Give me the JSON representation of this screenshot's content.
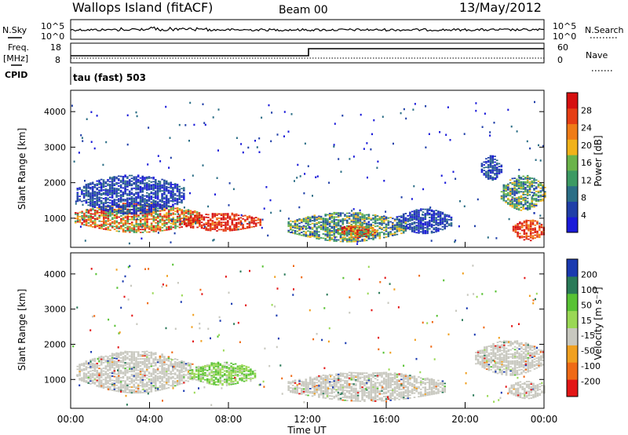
{
  "header": {
    "station": "Wallops Island (fitACF)",
    "beam": "Beam 00",
    "date": "13/May/2012"
  },
  "sky_panel": {
    "left_label": "N.Sky",
    "right_label": "N.Search",
    "left_ticks": [
      "10^5",
      "10^0"
    ],
    "right_ticks": [
      "10^5",
      "10^0"
    ]
  },
  "freq_panel": {
    "left_label_1": "Freq.",
    "left_label_2": "[MHz]",
    "right_label": "Nave",
    "left_ticks": [
      "18",
      "8"
    ],
    "right_ticks": [
      "60",
      "0"
    ]
  },
  "cpid_panel": {
    "label": "CPID",
    "mode": "tau (fast) 503"
  },
  "power_panel": {
    "ylabel": "Slant Range [km]",
    "yticks": [
      "4000",
      "3000",
      "2000",
      "1000"
    ],
    "colorbar_label": "Power [dB]",
    "colorbar_ticks": [
      "28",
      "24",
      "20",
      "16",
      "12",
      "8",
      "4"
    ]
  },
  "velocity_panel": {
    "ylabel": "Slant Range [km]",
    "yticks": [
      "4000",
      "3000",
      "2000",
      "1000"
    ],
    "colorbar_label": "Velocity [m s⁻¹]",
    "colorbar_ticks": [
      "200",
      "100",
      "50",
      "15",
      "-15",
      "-50",
      "-100",
      "-200"
    ]
  },
  "xaxis": {
    "label": "Time UT",
    "ticks": [
      "00:00",
      "04:00",
      "08:00",
      "12:00",
      "16:00",
      "20:00",
      "00:00"
    ]
  },
  "chart_data": {
    "type": "heatmap",
    "xlabel": "Time UT",
    "ylabel": "Slant Range [km]",
    "xlim_hours": [
      0,
      24
    ],
    "ylim_km": [
      180,
      4600
    ],
    "power_colors": [
      "#1a1ad9",
      "#203fa8",
      "#2b6e86",
      "#3c9a63",
      "#6ab34a",
      "#f0b21a",
      "#ef7c17",
      "#e63e14",
      "#d61010"
    ],
    "velocity_colors": [
      "#e31616",
      "#ef6a16",
      "#f0a020",
      "#c8c8bf",
      "#9ad855",
      "#58c234",
      "#2a7a58",
      "#1a3ab0"
    ],
    "power_blobs": [
      {
        "t0": 0.2,
        "t1": 6.5,
        "r_center": 1000,
        "r_width": 420,
        "level": "high"
      },
      {
        "t0": 5.5,
        "t1": 9.6,
        "r_center": 880,
        "r_width": 260,
        "level": "peak"
      },
      {
        "t0": 0.3,
        "t1": 5.8,
        "r_center": 1650,
        "r_width": 550,
        "level": "low"
      },
      {
        "t0": 11.0,
        "t1": 17.0,
        "r_center": 740,
        "r_width": 420,
        "level": "mid"
      },
      {
        "t0": 13.5,
        "t1": 15.5,
        "r_center": 620,
        "r_width": 180,
        "level": "high"
      },
      {
        "t0": 16.5,
        "t1": 19.3,
        "r_center": 900,
        "r_width": 350,
        "level": "low"
      },
      {
        "t0": 21.8,
        "t1": 24.0,
        "r_center": 1700,
        "r_width": 500,
        "level": "mid"
      },
      {
        "t0": 22.4,
        "t1": 24.0,
        "r_center": 650,
        "r_width": 300,
        "level": "peak"
      },
      {
        "t0": 20.8,
        "t1": 21.8,
        "r_center": 2400,
        "r_width": 350,
        "level": "low"
      }
    ],
    "velocity_blobs": [
      {
        "t0": 0.3,
        "t1": 6.2,
        "r_center": 1200,
        "r_width": 600,
        "level": "grey"
      },
      {
        "t0": 6.0,
        "t1": 9.3,
        "r_center": 1150,
        "r_width": 330,
        "level": "green"
      },
      {
        "t0": 11.0,
        "t1": 19.0,
        "r_center": 780,
        "r_width": 420,
        "level": "grey"
      },
      {
        "t0": 20.5,
        "t1": 24.0,
        "r_center": 1600,
        "r_width": 500,
        "level": "grey"
      },
      {
        "t0": 22.2,
        "t1": 24.0,
        "r_center": 700,
        "r_width": 260,
        "level": "grey"
      }
    ]
  }
}
